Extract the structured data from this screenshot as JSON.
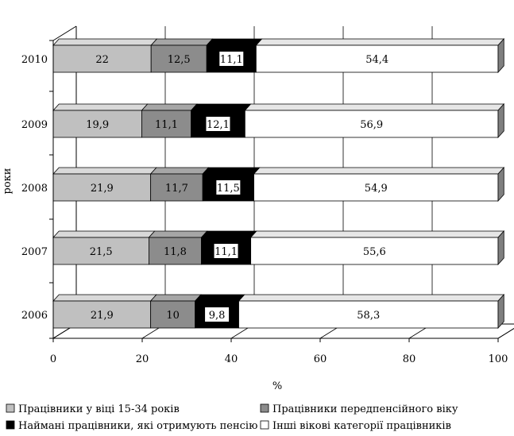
{
  "chart_data": {
    "type": "bar",
    "orientation": "horizontal",
    "stacked": true,
    "style": "3d",
    "title": "",
    "xlabel": "%",
    "ylabel": "роки",
    "xlim": [
      0,
      100
    ],
    "x_ticks": [
      "0",
      "20",
      "40",
      "60",
      "80",
      "100"
    ],
    "categories": [
      "2010",
      "2009",
      "2008",
      "2007",
      "2006"
    ],
    "series": [
      {
        "name": "Працівники у віці 15-34 років",
        "color": "#c0c0c0",
        "values": [
          22,
          19.9,
          21.9,
          21.5,
          21.9
        ],
        "labels": [
          "22",
          "19,9",
          "21,9",
          "21,5",
          "21,9"
        ]
      },
      {
        "name": "Працівники передпенсійного віку",
        "color": "#8c8c8c",
        "values": [
          12.5,
          11.1,
          11.7,
          11.8,
          10
        ],
        "labels": [
          "12,5",
          "11,1",
          "11,7",
          "11,8",
          "10"
        ]
      },
      {
        "name": "Наймані працівники, які отримують пенсію",
        "color": "#000000",
        "values": [
          11.1,
          12.1,
          11.5,
          11.1,
          9.8
        ],
        "labels": [
          "11,1",
          "12,1",
          "11,5",
          "11,1",
          "9,8"
        ]
      },
      {
        "name": "Інші вікові категорії працівників",
        "color": "#ffffff",
        "values": [
          54.4,
          56.9,
          54.9,
          55.6,
          58.3
        ],
        "labels": [
          "54,4",
          "56,9",
          "54,9",
          "55,6",
          "58,3"
        ]
      }
    ],
    "grid": "vertical",
    "legend_position": "bottom"
  }
}
